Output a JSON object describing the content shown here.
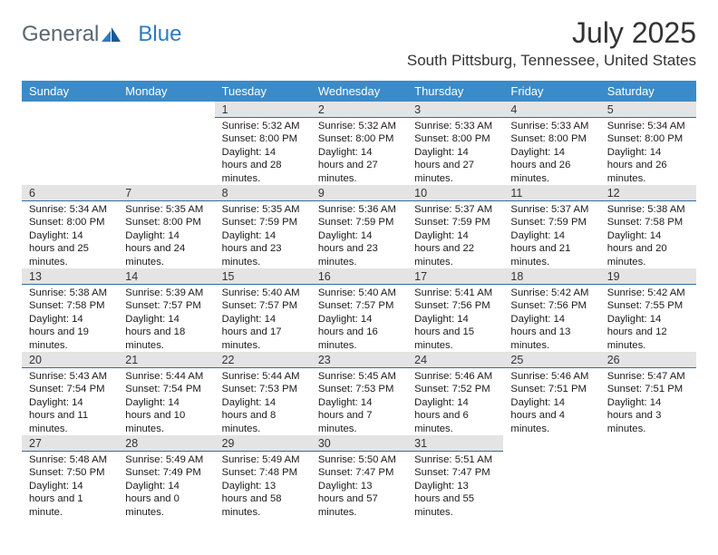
{
  "brand": {
    "part1": "General",
    "part2": "Blue"
  },
  "title": "July 2025",
  "location": "South Pittsburg, Tennessee, United States",
  "colors": {
    "header_bg": "#3b8bc8",
    "header_text": "#ffffff",
    "daynum_bg": "#e4e4e4",
    "daynum_border": "#2f6ea8",
    "brand_gray": "#5b6770",
    "brand_blue": "#2f7bbf"
  },
  "weekdays": [
    "Sunday",
    "Monday",
    "Tuesday",
    "Wednesday",
    "Thursday",
    "Friday",
    "Saturday"
  ],
  "weeks": [
    [
      null,
      null,
      {
        "day": 1,
        "sunrise": "5:32 AM",
        "sunset": "8:00 PM",
        "daylight": "14 hours and 28 minutes."
      },
      {
        "day": 2,
        "sunrise": "5:32 AM",
        "sunset": "8:00 PM",
        "daylight": "14 hours and 27 minutes."
      },
      {
        "day": 3,
        "sunrise": "5:33 AM",
        "sunset": "8:00 PM",
        "daylight": "14 hours and 27 minutes."
      },
      {
        "day": 4,
        "sunrise": "5:33 AM",
        "sunset": "8:00 PM",
        "daylight": "14 hours and 26 minutes."
      },
      {
        "day": 5,
        "sunrise": "5:34 AM",
        "sunset": "8:00 PM",
        "daylight": "14 hours and 26 minutes."
      }
    ],
    [
      {
        "day": 6,
        "sunrise": "5:34 AM",
        "sunset": "8:00 PM",
        "daylight": "14 hours and 25 minutes."
      },
      {
        "day": 7,
        "sunrise": "5:35 AM",
        "sunset": "8:00 PM",
        "daylight": "14 hours and 24 minutes."
      },
      {
        "day": 8,
        "sunrise": "5:35 AM",
        "sunset": "7:59 PM",
        "daylight": "14 hours and 23 minutes."
      },
      {
        "day": 9,
        "sunrise": "5:36 AM",
        "sunset": "7:59 PM",
        "daylight": "14 hours and 23 minutes."
      },
      {
        "day": 10,
        "sunrise": "5:37 AM",
        "sunset": "7:59 PM",
        "daylight": "14 hours and 22 minutes."
      },
      {
        "day": 11,
        "sunrise": "5:37 AM",
        "sunset": "7:59 PM",
        "daylight": "14 hours and 21 minutes."
      },
      {
        "day": 12,
        "sunrise": "5:38 AM",
        "sunset": "7:58 PM",
        "daylight": "14 hours and 20 minutes."
      }
    ],
    [
      {
        "day": 13,
        "sunrise": "5:38 AM",
        "sunset": "7:58 PM",
        "daylight": "14 hours and 19 minutes."
      },
      {
        "day": 14,
        "sunrise": "5:39 AM",
        "sunset": "7:57 PM",
        "daylight": "14 hours and 18 minutes."
      },
      {
        "day": 15,
        "sunrise": "5:40 AM",
        "sunset": "7:57 PM",
        "daylight": "14 hours and 17 minutes."
      },
      {
        "day": 16,
        "sunrise": "5:40 AM",
        "sunset": "7:57 PM",
        "daylight": "14 hours and 16 minutes."
      },
      {
        "day": 17,
        "sunrise": "5:41 AM",
        "sunset": "7:56 PM",
        "daylight": "14 hours and 15 minutes."
      },
      {
        "day": 18,
        "sunrise": "5:42 AM",
        "sunset": "7:56 PM",
        "daylight": "14 hours and 13 minutes."
      },
      {
        "day": 19,
        "sunrise": "5:42 AM",
        "sunset": "7:55 PM",
        "daylight": "14 hours and 12 minutes."
      }
    ],
    [
      {
        "day": 20,
        "sunrise": "5:43 AM",
        "sunset": "7:54 PM",
        "daylight": "14 hours and 11 minutes."
      },
      {
        "day": 21,
        "sunrise": "5:44 AM",
        "sunset": "7:54 PM",
        "daylight": "14 hours and 10 minutes."
      },
      {
        "day": 22,
        "sunrise": "5:44 AM",
        "sunset": "7:53 PM",
        "daylight": "14 hours and 8 minutes."
      },
      {
        "day": 23,
        "sunrise": "5:45 AM",
        "sunset": "7:53 PM",
        "daylight": "14 hours and 7 minutes."
      },
      {
        "day": 24,
        "sunrise": "5:46 AM",
        "sunset": "7:52 PM",
        "daylight": "14 hours and 6 minutes."
      },
      {
        "day": 25,
        "sunrise": "5:46 AM",
        "sunset": "7:51 PM",
        "daylight": "14 hours and 4 minutes."
      },
      {
        "day": 26,
        "sunrise": "5:47 AM",
        "sunset": "7:51 PM",
        "daylight": "14 hours and 3 minutes."
      }
    ],
    [
      {
        "day": 27,
        "sunrise": "5:48 AM",
        "sunset": "7:50 PM",
        "daylight": "14 hours and 1 minute."
      },
      {
        "day": 28,
        "sunrise": "5:49 AM",
        "sunset": "7:49 PM",
        "daylight": "14 hours and 0 minutes."
      },
      {
        "day": 29,
        "sunrise": "5:49 AM",
        "sunset": "7:48 PM",
        "daylight": "13 hours and 58 minutes."
      },
      {
        "day": 30,
        "sunrise": "5:50 AM",
        "sunset": "7:47 PM",
        "daylight": "13 hours and 57 minutes."
      },
      {
        "day": 31,
        "sunrise": "5:51 AM",
        "sunset": "7:47 PM",
        "daylight": "13 hours and 55 minutes."
      },
      null,
      null
    ]
  ]
}
